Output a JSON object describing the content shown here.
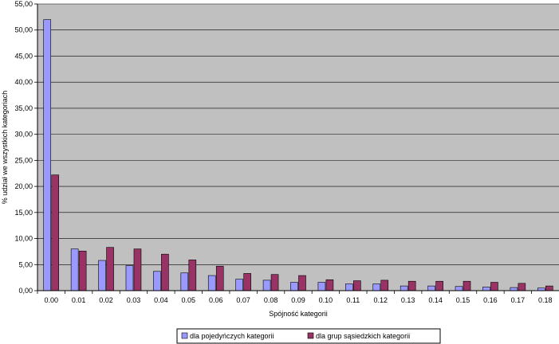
{
  "chart_data": {
    "type": "bar",
    "categories": [
      "0.00",
      "0.01",
      "0.02",
      "0.03",
      "0.04",
      "0.05",
      "0.06",
      "0.07",
      "0.08",
      "0.09",
      "0.10",
      "0.11",
      "0.12",
      "0.13",
      "0.14",
      "0.15",
      "0.16",
      "0.17",
      "0.18"
    ],
    "series": [
      {
        "name": "dla pojedyńczych kategorii",
        "color": "#9999ff",
        "values": [
          52.0,
          8.0,
          5.8,
          4.8,
          3.7,
          3.4,
          2.9,
          2.2,
          2.0,
          1.6,
          1.6,
          1.3,
          1.3,
          0.9,
          0.9,
          0.8,
          0.7,
          0.6,
          0.5
        ]
      },
      {
        "name": "dla grup sąsiedzkich kategorii",
        "color": "#993366",
        "values": [
          22.2,
          7.6,
          8.3,
          8.0,
          7.0,
          5.9,
          4.7,
          3.3,
          3.1,
          2.9,
          2.1,
          1.9,
          2.0,
          1.8,
          1.8,
          1.8,
          1.6,
          1.4,
          0.9
        ]
      }
    ],
    "xlabel": "Spójność kategorii",
    "ylabel": "% udział we wszystkich kategoriach",
    "ylim": [
      0,
      55
    ],
    "yticks": [
      "0,00",
      "5,00",
      "10,00",
      "15,00",
      "20,00",
      "25,00",
      "30,00",
      "35,00",
      "40,00",
      "45,00",
      "50,00",
      "55,00"
    ],
    "grid": true,
    "legend": "bottom",
    "plot_background": "#c0c0c0",
    "gridline_color": "#000000"
  }
}
